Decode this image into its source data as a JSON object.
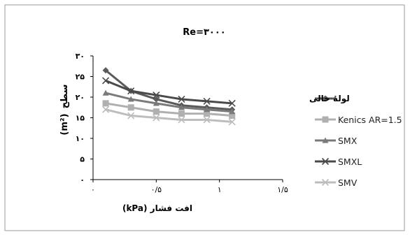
{
  "chart_data": {
    "type": "line",
    "title": "Re=۳۰۰۰",
    "xlabel": "افت فشار (kPa)",
    "ylabel_text": "سطح",
    "ylabel_unit": "(m²)",
    "xlim": [
      0,
      1.5
    ],
    "ylim": [
      0,
      30
    ],
    "x_ticks": [
      {
        "value": 0,
        "label": "۰"
      },
      {
        "value": 0.5,
        "label": "۰/۵"
      },
      {
        "value": 1,
        "label": "۱"
      },
      {
        "value": 1.5,
        "label": "۱/۵"
      }
    ],
    "y_ticks": [
      {
        "value": 0,
        "label": "۰"
      },
      {
        "value": 5,
        "label": "۵"
      },
      {
        "value": 10,
        "label": "۱۰"
      },
      {
        "value": 15,
        "label": "۱۵"
      },
      {
        "value": 20,
        "label": "۲۰"
      },
      {
        "value": 25,
        "label": "۲۵"
      },
      {
        "value": 30,
        "label": "۳۰"
      }
    ],
    "x": [
      0.1,
      0.3,
      0.5,
      0.7,
      0.9,
      1.1
    ],
    "series": [
      {
        "name": "لولهٔ خالی",
        "color": "#5a5a5a",
        "marker": "diamond",
        "values": [
          26.5,
          21.5,
          19.5,
          18,
          17.5,
          17
        ]
      },
      {
        "name": "Kenics AR=1.5",
        "color": "#b0b0b0",
        "marker": "square",
        "values": [
          18.5,
          17.5,
          16.5,
          16,
          16,
          15.5
        ]
      },
      {
        "name": "SMX",
        "color": "#7a7a7a",
        "marker": "triangle",
        "values": [
          21,
          19.5,
          18.5,
          17.5,
          17,
          16.5
        ]
      },
      {
        "name": "SMXL",
        "color": "#4a4a4a",
        "marker": "x",
        "values": [
          24,
          21.5,
          20.5,
          19.5,
          19,
          18.5
        ]
      },
      {
        "name": "SMV",
        "color": "#bdbdbd",
        "marker": "x",
        "values": [
          17,
          15.5,
          15,
          14.5,
          14.5,
          14
        ]
      }
    ],
    "grid": false,
    "legend_position": "right"
  }
}
